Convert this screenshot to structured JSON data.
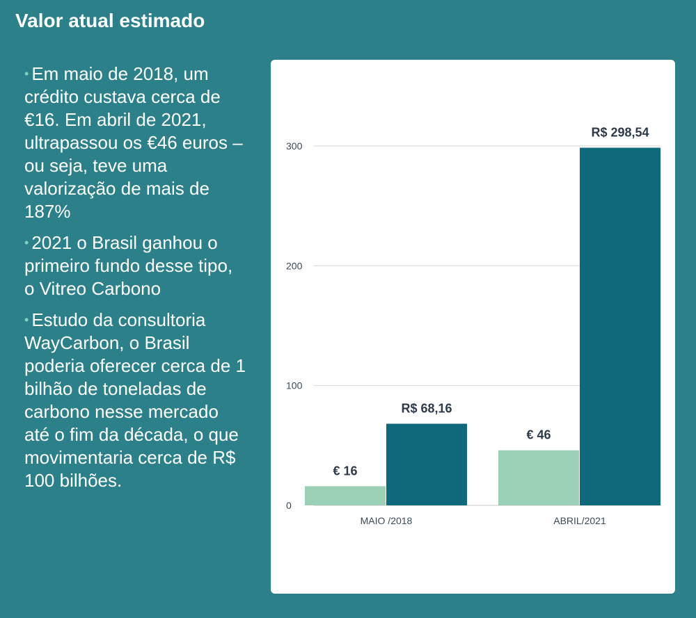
{
  "page": {
    "title": "Valor atual estimado"
  },
  "bullets": [
    "Em maio de 2018, um crédito custava cerca de €16. Em abril de 2021, ultrapassou os €46 euros – ou seja, teve uma valorização de mais de 187%",
    "2021 o Brasil ganhou o primeiro fundo desse tipo, o Vitreo Carbono",
    "Estudo da consultoria WayCarbon, o Brasil poderia oferecer cerca de 1 bilhão de toneladas de carbono nesse mercado até o fim da década, o que movimentaria cerca de R$ 100 bilhões."
  ],
  "colors": {
    "background": "#2b8089",
    "euro_bar": "#9bcfb6",
    "real_bar": "#0e6a7b",
    "bullet_dot": "#7fd1c0"
  },
  "chart_data": {
    "type": "bar",
    "categories": [
      "MAIO /2018",
      "ABRIL/2021"
    ],
    "series": [
      {
        "values": [
          16,
          46
        ],
        "labels": [
          "€ 16",
          "€ 46"
        ]
      },
      {
        "values": [
          68.16,
          298.54
        ],
        "labels": [
          "R$ 68,16",
          "R$ 298,54"
        ]
      }
    ],
    "yticks": [
      0,
      100,
      200,
      300
    ],
    "ylim": [
      0,
      300
    ],
    "grid": true,
    "legend": "none"
  }
}
